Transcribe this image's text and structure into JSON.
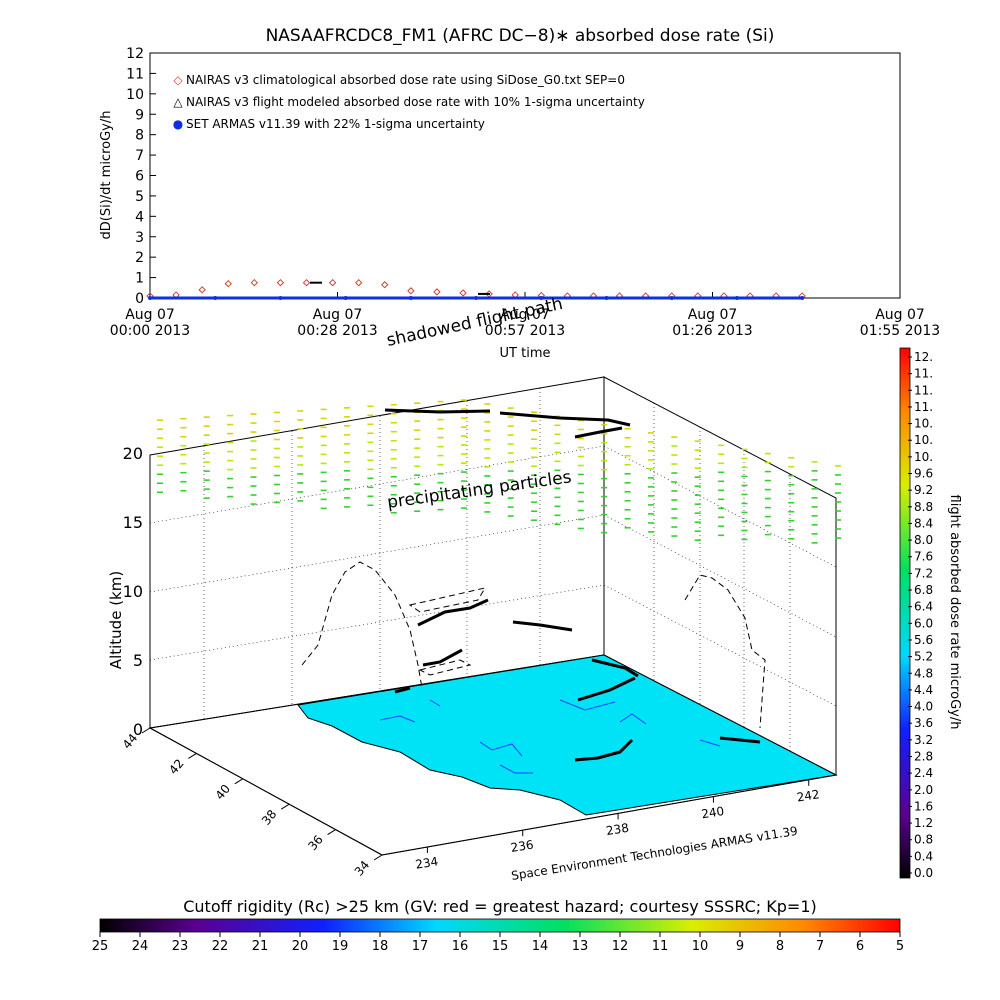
{
  "title": "NASAAFRCDC8_FM1 (AFRC DC−8)∗ absorbed dose rate (Si)",
  "top_chart": {
    "ylabel": "dD(Si)/dt microGy/h",
    "xlabel": "UT time",
    "yticks": [
      "0",
      "1",
      "2",
      "3",
      "4",
      "5",
      "6",
      "7",
      "8",
      "9",
      "10",
      "11",
      "12"
    ],
    "xticks": [
      {
        "top": "Aug 07",
        "bottom": "00:00 2013"
      },
      {
        "top": "Aug 07",
        "bottom": "00:28 2013"
      },
      {
        "top": "Aug 07",
        "bottom": "00:57 2013"
      },
      {
        "top": "Aug 07",
        "bottom": "01:26 2013"
      },
      {
        "top": "Aug 07",
        "bottom": "01:55 2013"
      }
    ],
    "legend": [
      {
        "marker": "◇",
        "text": "NAIRAS v3 climatological absorbed dose rate using SiDose_G0.txt SEP=0",
        "color": "#d04030"
      },
      {
        "marker": "△",
        "text": "NAIRAS v3 flight modeled absorbed dose rate with 10% 1-sigma uncertainty",
        "color": "#000000"
      },
      {
        "marker": "●",
        "text": "SET ARMAS v11.39 with 22% 1-sigma uncertainty",
        "color": "#1030e0"
      }
    ]
  },
  "chart_data": [
    {
      "type": "line",
      "title": "NASAAFRCDC8_FM1 (AFRC DC−8)∗ absorbed dose rate (Si)",
      "xlabel": "UT time",
      "ylabel": "dD(Si)/dt microGy/h",
      "ylim": [
        0,
        12
      ],
      "x_minutes_range": [
        0,
        115
      ],
      "series": [
        {
          "name": "NAIRAS v3 climatological absorbed dose rate using SiDose_G0.txt SEP=0",
          "x_minutes": [
            0,
            4,
            8,
            12,
            16,
            20,
            24,
            28,
            32,
            36,
            40,
            44,
            48,
            52,
            56,
            60,
            64,
            68,
            72,
            76,
            80,
            84,
            88,
            92,
            96,
            100
          ],
          "values": [
            0.1,
            0.15,
            0.4,
            0.7,
            0.75,
            0.75,
            0.75,
            0.75,
            0.75,
            0.65,
            0.35,
            0.3,
            0.25,
            0.2,
            0.15,
            0.12,
            0.1,
            0.1,
            0.1,
            0.1,
            0.1,
            0.1,
            0.1,
            0.1,
            0.1,
            0.1
          ]
        },
        {
          "name": "SET ARMAS v11.39 with 22% 1-sigma uncertainty",
          "x_minutes": [
            0,
            10,
            20,
            30,
            40,
            50,
            60,
            70,
            80,
            90,
            100
          ],
          "values": [
            0,
            0,
            0,
            0,
            0,
            0,
            0,
            0,
            0,
            0,
            0
          ]
        }
      ]
    },
    {
      "type": "scatter",
      "title": "",
      "ylabel": "Altitude (km)",
      "yticks": [
        "0",
        "5",
        "10",
        "15",
        "20"
      ],
      "lat_ticks": [
        "44",
        "42",
        "40",
        "38",
        "36",
        "34"
      ],
      "lon_ticks": [
        "234",
        "236",
        "238",
        "240",
        "242"
      ]
    }
  ],
  "labels": {
    "shadowed": "shadowed flight path",
    "precipitating": "precipitating particles",
    "altitude": "Altitude (km)",
    "credit": "Space Environment Technologies ARMAS v11.39"
  },
  "colorbar_right": {
    "label": "flight absorbed dose rate microGy/h",
    "ticks": [
      "12.",
      "11.",
      "11.",
      "11.",
      "10.",
      "10.",
      "10.",
      "9.6",
      "9.2",
      "8.8",
      "8.4",
      "8.0",
      "7.6",
      "7.2",
      "6.8",
      "6.4",
      "6.0",
      "5.6",
      "5.2",
      "4.8",
      "4.4",
      "4.0",
      "3.6",
      "3.2",
      "2.8",
      "2.4",
      "2.0",
      "1.6",
      "1.2",
      "0.8",
      "0.4",
      "0.0"
    ]
  },
  "colorbar_bottom": {
    "label": "Cutoff rigidity (Rc) >25 km (GV: red = greatest hazard; courtesy SSSRC; Kp=1)",
    "ticks": [
      "25",
      "24",
      "23",
      "22",
      "21",
      "20",
      "19",
      "18",
      "17",
      "16",
      "15",
      "14",
      "13",
      "12",
      "11",
      "10",
      "9",
      "8",
      "7",
      "6",
      "5"
    ]
  }
}
